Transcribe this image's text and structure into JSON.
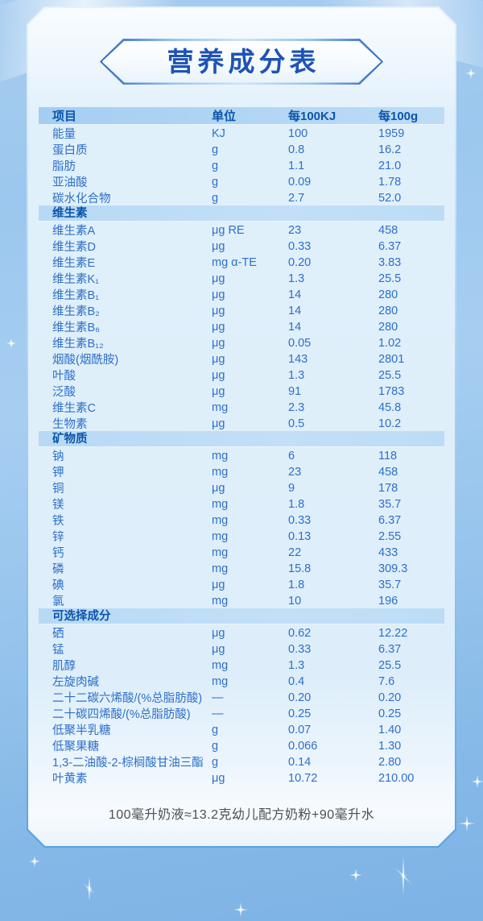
{
  "title": "营养成分表",
  "table": {
    "columns": [
      "项目",
      "单位",
      "每100KJ",
      "每100g"
    ],
    "sections": [
      {
        "header": "",
        "rows": [
          [
            "能量",
            "KJ",
            "100",
            "1959"
          ],
          [
            "蛋白质",
            "g",
            "0.8",
            "16.2"
          ],
          [
            "脂肪",
            "g",
            "1.1",
            "21.0"
          ],
          [
            "亚油酸",
            "g",
            "0.09",
            "1.78"
          ],
          [
            "碳水化合物",
            "g",
            "2.7",
            "52.0"
          ]
        ]
      },
      {
        "header": "维生素",
        "rows": [
          [
            "维生素A",
            "μg RE",
            "23",
            "458"
          ],
          [
            "维生素D",
            "μg",
            "0.33",
            "6.37"
          ],
          [
            "维生素E",
            "mg α-TE",
            "0.20",
            "3.83"
          ],
          [
            "维生素K₁",
            "μg",
            "1.3",
            "25.5"
          ],
          [
            "维生素B₁",
            "μg",
            "14",
            "280"
          ],
          [
            "维生素B₂",
            "μg",
            "14",
            "280"
          ],
          [
            "维生素B₆",
            "μg",
            "14",
            "280"
          ],
          [
            "维生素B₁₂",
            "μg",
            "0.05",
            "1.02"
          ],
          [
            "烟酸(烟酰胺)",
            "μg",
            "143",
            "2801"
          ],
          [
            "叶酸",
            "μg",
            "1.3",
            "25.5"
          ],
          [
            "泛酸",
            "μg",
            "91",
            "1783"
          ],
          [
            "维生素C",
            "mg",
            "2.3",
            "45.8"
          ],
          [
            "生物素",
            "μg",
            "0.5",
            "10.2"
          ]
        ]
      },
      {
        "header": "矿物质",
        "rows": [
          [
            "钠",
            "mg",
            "6",
            "118"
          ],
          [
            "钾",
            "mg",
            "23",
            "458"
          ],
          [
            "铜",
            "μg",
            "9",
            "178"
          ],
          [
            "镁",
            "mg",
            "1.8",
            "35.7"
          ],
          [
            "铁",
            "mg",
            "0.33",
            "6.37"
          ],
          [
            "锌",
            "mg",
            "0.13",
            "2.55"
          ],
          [
            "钙",
            "mg",
            "22",
            "433"
          ],
          [
            "磷",
            "mg",
            "15.8",
            "309.3"
          ],
          [
            "碘",
            "μg",
            "1.8",
            "35.7"
          ],
          [
            "氯",
            "mg",
            "10",
            "196"
          ]
        ]
      },
      {
        "header": "可选择成分",
        "rows": [
          [
            "硒",
            "μg",
            "0.62",
            "12.22"
          ],
          [
            "锰",
            "μg",
            "0.33",
            "6.37"
          ],
          [
            "肌醇",
            "mg",
            "1.3",
            "25.5"
          ],
          [
            "左旋肉碱",
            "mg",
            "0.4",
            "7.6"
          ],
          [
            "二十二碳六烯酸/(%总脂肪酸)",
            "—",
            "0.20",
            "0.20"
          ],
          [
            "二十碳四烯酸/(%总脂肪酸)",
            "—",
            "0.25",
            "0.25"
          ],
          [
            "低聚半乳糖",
            "g",
            "0.07",
            "1.40"
          ],
          [
            "低聚果糖",
            "g",
            "0.066",
            "1.30"
          ],
          [
            "1,3-二油酸-2-棕榈酸甘油三酯",
            "g",
            "0.14",
            "2.80"
          ],
          [
            "叶黄素",
            "μg",
            "10.72",
            "210.00"
          ]
        ]
      }
    ]
  },
  "footnote": "100毫升奶液≈13.2克幼儿配方奶粉+90毫升水",
  "colors": {
    "title_text": "#1d52b8",
    "header_band": "#aed4f2",
    "section_band": "#bcdcf6",
    "row_text": "#2e6fc8",
    "footnote_text": "#4d4f52",
    "card_border": "#79b2e6",
    "background_top": "#a7cdf0",
    "background_bottom": "#7db3e5"
  },
  "icons": {
    "sparkle": "four-point-star"
  }
}
